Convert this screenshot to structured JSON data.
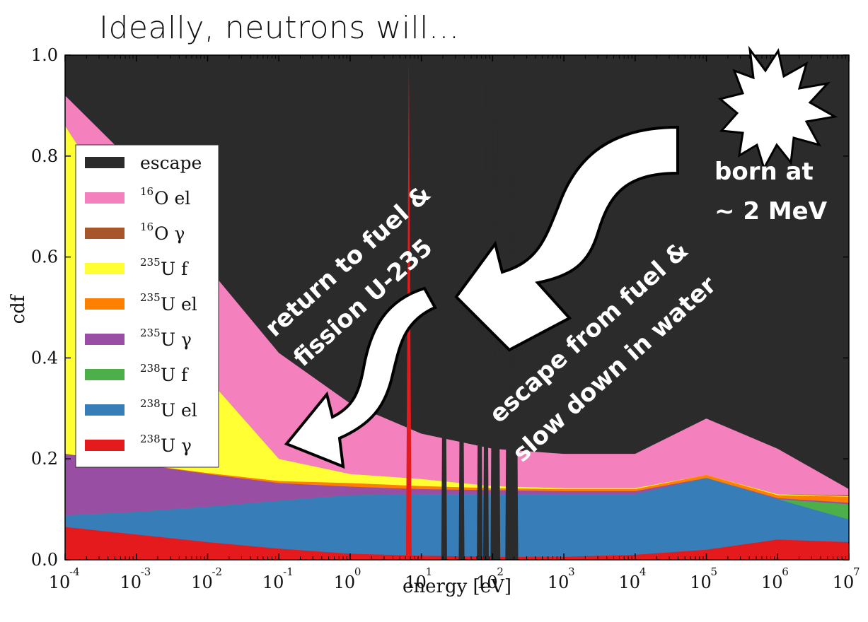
{
  "title": "Ideally, neutrons will...",
  "colors": {
    "escape": "#2b2b2b",
    "o16_el": "#f481bd",
    "o16_gamma": "#a6562a",
    "u235_f": "#ffff33",
    "u235_el": "#ff7f00",
    "u235_gamma": "#984ea3",
    "u238_f": "#4daf4a",
    "u238_el": "#377eb8",
    "u238_gamma": "#e41a1c"
  },
  "annotations": {
    "born_line1": "born at",
    "born_line2": "~ 2 MeV",
    "escape_line1": "escape from fuel &",
    "escape_line2": "slow down in water",
    "return_line1": "return to fuel &",
    "return_line2": "fission U-235"
  },
  "chart_data": {
    "type": "area",
    "title": "",
    "xlabel": "energy [eV]",
    "ylabel": "cdf",
    "xscale": "log",
    "xlim": [
      0.0001,
      10000000
    ],
    "ylim": [
      0.0,
      1.0
    ],
    "x_ticks": [
      {
        "base": "10",
        "exp": "-4"
      },
      {
        "base": "10",
        "exp": "-3"
      },
      {
        "base": "10",
        "exp": "-2"
      },
      {
        "base": "10",
        "exp": "-1"
      },
      {
        "base": "10",
        "exp": "0"
      },
      {
        "base": "10",
        "exp": "1"
      },
      {
        "base": "10",
        "exp": "2"
      },
      {
        "base": "10",
        "exp": "3"
      },
      {
        "base": "10",
        "exp": "4"
      },
      {
        "base": "10",
        "exp": "5"
      },
      {
        "base": "10",
        "exp": "6"
      },
      {
        "base": "10",
        "exp": "7"
      }
    ],
    "y_ticks": [
      "0.0",
      "0.2",
      "0.4",
      "0.6",
      "0.8",
      "1.0"
    ],
    "legend_position": "left",
    "x": [
      0.0001,
      0.001,
      0.01,
      0.1,
      1,
      10,
      100,
      1000,
      10000,
      100000,
      1000000,
      10000000
    ],
    "series": [
      {
        "name_sup": "238",
        "name": "U γ",
        "color_key": "u238_gamma",
        "upper": [
          0.065,
          0.05,
          0.035,
          0.022,
          0.012,
          0.008,
          0.006,
          0.006,
          0.01,
          0.02,
          0.04,
          0.035
        ]
      },
      {
        "name_sup": "238",
        "name": "U el",
        "color_key": "u238_el",
        "upper": [
          0.088,
          0.095,
          0.105,
          0.117,
          0.128,
          0.13,
          0.13,
          0.13,
          0.13,
          0.162,
          0.12,
          0.08
        ]
      },
      {
        "name_sup": "238",
        "name": "U f",
        "color_key": "u238_f",
        "upper": [
          0.088,
          0.095,
          0.105,
          0.117,
          0.128,
          0.13,
          0.13,
          0.13,
          0.13,
          0.162,
          0.12,
          0.11
        ]
      },
      {
        "name_sup": "235",
        "name": "U γ",
        "color_key": "u235_gamma",
        "upper": [
          0.21,
          0.19,
          0.17,
          0.152,
          0.145,
          0.14,
          0.138,
          0.136,
          0.136,
          0.162,
          0.122,
          0.113
        ]
      },
      {
        "name_sup": "235",
        "name": "U el",
        "color_key": "u235_el",
        "upper": [
          0.21,
          0.19,
          0.172,
          0.156,
          0.152,
          0.146,
          0.142,
          0.14,
          0.14,
          0.168,
          0.128,
          0.125
        ]
      },
      {
        "name_sup": "235",
        "name": "U f",
        "color_key": "u235_f",
        "upper": [
          0.86,
          0.64,
          0.36,
          0.2,
          0.17,
          0.16,
          0.146,
          0.142,
          0.142,
          0.168,
          0.13,
          0.126
        ]
      },
      {
        "name_sup": "16",
        "name": "O γ",
        "color_key": "o16_gamma",
        "upper": [
          0.86,
          0.64,
          0.36,
          0.2,
          0.17,
          0.16,
          0.146,
          0.142,
          0.142,
          0.168,
          0.13,
          0.128
        ]
      },
      {
        "name_sup": "16",
        "name": "O el",
        "color_key": "o16_el",
        "upper": [
          0.92,
          0.78,
          0.58,
          0.41,
          0.31,
          0.25,
          0.22,
          0.21,
          0.21,
          0.28,
          0.22,
          0.14
        ]
      },
      {
        "name_sup": "",
        "name": "escape",
        "color_key": "escape",
        "upper": [
          1.0,
          1.0,
          1.0,
          1.0,
          1.0,
          1.0,
          1.0,
          1.0,
          1.0,
          1.0,
          1.0,
          1.0
        ]
      }
    ],
    "legend": [
      {
        "sup": "",
        "label": "escape",
        "color_key": "escape"
      },
      {
        "sup": "16",
        "label": "O el",
        "color_key": "o16_el"
      },
      {
        "sup": "16",
        "label": "O γ",
        "color_key": "o16_gamma"
      },
      {
        "sup": "235",
        "label": "U f",
        "color_key": "u235_f"
      },
      {
        "sup": "235",
        "label": "U el",
        "color_key": "u235_el"
      },
      {
        "sup": "235",
        "label": "U γ",
        "color_key": "u235_gamma"
      },
      {
        "sup": "238",
        "label": "U f",
        "color_key": "u238_f"
      },
      {
        "sup": "238",
        "label": "U el",
        "color_key": "u238_el"
      },
      {
        "sup": "238",
        "label": "U γ",
        "color_key": "u238_gamma"
      }
    ],
    "resonances": [
      {
        "x": 6.67,
        "height": 0.99
      },
      {
        "x": 20.9,
        "height": 0.98
      },
      {
        "x": 36.7,
        "height": 0.98
      },
      {
        "x": 66.0,
        "height": 0.96
      },
      {
        "x": 80.7,
        "height": 0.95
      },
      {
        "x": 102.5,
        "height": 0.94
      },
      {
        "x": 116.9,
        "height": 0.93
      },
      {
        "x": 165.3,
        "height": 0.92
      },
      {
        "x": 190.0,
        "height": 0.9
      },
      {
        "x": 208.5,
        "height": 0.88
      }
    ]
  }
}
